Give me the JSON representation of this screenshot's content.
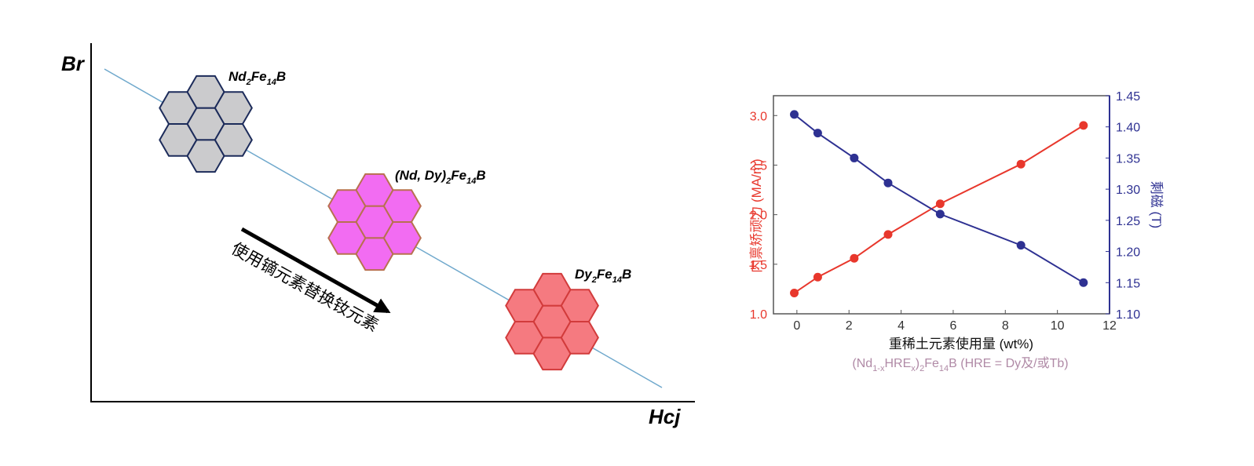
{
  "diagram": {
    "y_axis": "Br",
    "x_axis": "Hcj",
    "arrow_text": "使用镝元素替换钕元素",
    "phases": [
      {
        "parts": [
          "Nd",
          "2",
          "Fe",
          "14",
          "B"
        ]
      },
      {
        "parts": [
          "(Nd, Dy)",
          "2",
          "Fe",
          "14",
          "B"
        ]
      },
      {
        "parts": [
          "Dy",
          "2",
          "Fe",
          "14",
          "B"
        ]
      }
    ]
  },
  "chart_data": {
    "type": "line",
    "xlabel": "重稀土元素使用量 (wt%)",
    "ylabel": "内禀矫顽力 (MA/m)",
    "y2label": "剩磁 (T)",
    "note": [
      "(Nd",
      "1-x",
      "HRE",
      "x",
      ")",
      "2",
      "Fe",
      "14",
      "B (HRE = Dy及/或Tb)"
    ],
    "x": [
      -0.1,
      0.8,
      2.2,
      3.5,
      5.5,
      8.6,
      11.0
    ],
    "series": [
      {
        "color": "#e8372c",
        "values": [
          1.21,
          1.37,
          1.56,
          1.8,
          2.11,
          2.51,
          2.9
        ]
      },
      {
        "color": "#2e3192",
        "axis": "y2",
        "values": [
          1.42,
          1.39,
          1.35,
          1.31,
          1.26,
          1.21,
          1.15
        ]
      }
    ],
    "xlim": [
      -0.9,
      12
    ],
    "xticks": [
      0,
      2,
      4,
      6,
      8,
      10,
      12
    ],
    "ylim": [
      1.0,
      3.2
    ],
    "yticks": [
      {
        "value": 1.0,
        "label": "1.0"
      },
      {
        "value": 1.5,
        "label": "1.5"
      },
      {
        "value": 2.0,
        "label": "2.0"
      },
      {
        "value": 2.5,
        "label": "2.5"
      },
      {
        "value": 3.0,
        "label": "3.0"
      }
    ],
    "y2lim": [
      1.1,
      1.45
    ],
    "y2ticks": [
      {
        "value": 1.1,
        "label": "1.10"
      },
      {
        "value": 1.15,
        "label": "1.15"
      },
      {
        "value": 1.2,
        "label": "1.20"
      },
      {
        "value": 1.25,
        "label": "1.25"
      },
      {
        "value": 1.3,
        "label": "1.30"
      },
      {
        "value": 1.35,
        "label": "1.35"
      },
      {
        "value": 1.4,
        "label": "1.40"
      },
      {
        "value": 1.45,
        "label": "1.45"
      }
    ]
  }
}
